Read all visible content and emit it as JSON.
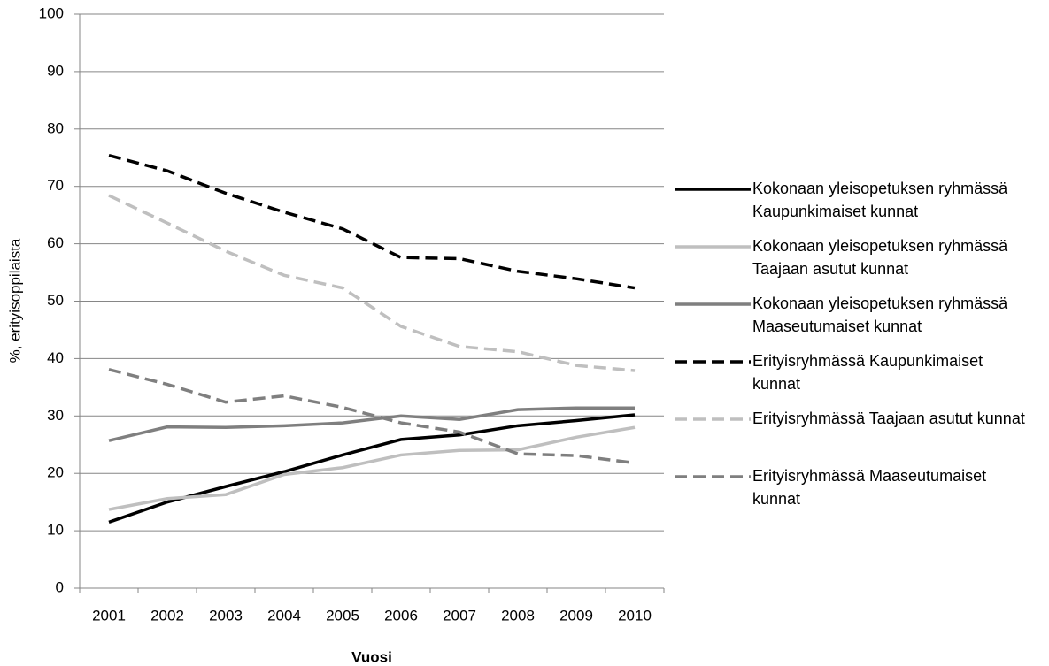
{
  "chart_data": {
    "type": "line",
    "x_label": "Vuosi",
    "y_label": "%, erityisoppilaista",
    "categories": [
      "2001",
      "2002",
      "2003",
      "2004",
      "2005",
      "2006",
      "2007",
      "2008",
      "2009",
      "2010"
    ],
    "ylim": [
      0,
      100
    ],
    "yticks": [
      0,
      10,
      20,
      30,
      40,
      50,
      60,
      70,
      80,
      90,
      100
    ],
    "grid": true,
    "legend": "right",
    "series": [
      {
        "name": "Kokonaan yleisopetuksen ryhmässä Kaupunkimaiset kunnat",
        "color": "#000000",
        "style": "solid",
        "values": [
          11.5,
          15,
          17.7,
          20.3,
          23.2,
          25.9,
          26.7,
          28.3,
          29.2,
          30.2
        ]
      },
      {
        "name": "Kokonaan yleisopetuksen ryhmässä Taajaan asutut kunnat",
        "color": "#bfbfbf",
        "style": "solid",
        "values": [
          13.7,
          15.6,
          16.3,
          19.8,
          21,
          23.2,
          24,
          24.1,
          26.3,
          28
        ]
      },
      {
        "name": "Kokonaan yleisopetuksen ryhmässä Maaseutumaiset kunnat",
        "color": "#7f7f7f",
        "style": "solid",
        "values": [
          25.7,
          28.1,
          28,
          28.3,
          28.8,
          30,
          29.4,
          31.1,
          31.4,
          31.4
        ]
      },
      {
        "name": "Erityisryhmässä Kaupunkimaiset kunnat",
        "color": "#000000",
        "style": "dashed",
        "values": [
          75.4,
          72.7,
          68.8,
          65.5,
          62.6,
          57.6,
          57.4,
          55.2,
          53.9,
          52.3
        ]
      },
      {
        "name": "Erityisryhmässä Taajaan asutut kunnat",
        "color": "#bfbfbf",
        "style": "dashed",
        "values": [
          68.4,
          63.6,
          58.7,
          54.5,
          52.3,
          45.6,
          42.1,
          41.2,
          38.8,
          37.9
        ]
      },
      {
        "name": "Erityisryhmässä Maaseutumaiset kunnat",
        "color": "#7f7f7f",
        "style": "dashed",
        "values": [
          38.1,
          35.5,
          32.4,
          33.5,
          31.5,
          28.8,
          27.2,
          23.4,
          23.1,
          21.8
        ]
      }
    ]
  }
}
